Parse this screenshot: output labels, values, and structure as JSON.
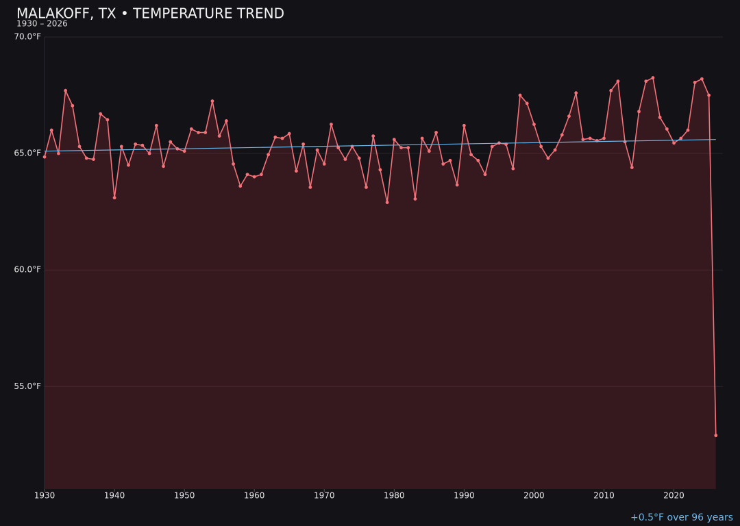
{
  "chart_data": {
    "type": "line",
    "title": "MALAKOFF, TX • TEMPERATURE TREND",
    "subtitle": "1930 – 2026",
    "annotation": "+0.5°F over 96 years",
    "x": [
      1930,
      1931,
      1932,
      1933,
      1934,
      1935,
      1936,
      1937,
      1938,
      1939,
      1940,
      1941,
      1942,
      1943,
      1944,
      1945,
      1946,
      1947,
      1948,
      1949,
      1950,
      1951,
      1952,
      1953,
      1954,
      1955,
      1956,
      1957,
      1958,
      1959,
      1960,
      1961,
      1962,
      1963,
      1964,
      1965,
      1966,
      1967,
      1968,
      1969,
      1970,
      1971,
      1972,
      1973,
      1974,
      1975,
      1976,
      1977,
      1978,
      1979,
      1980,
      1981,
      1982,
      1983,
      1984,
      1985,
      1986,
      1987,
      1988,
      1989,
      1990,
      1991,
      1992,
      1993,
      1994,
      1995,
      1996,
      1997,
      1998,
      1999,
      2000,
      2001,
      2002,
      2003,
      2004,
      2005,
      2006,
      2007,
      2008,
      2009,
      2010,
      2011,
      2012,
      2013,
      2014,
      2015,
      2016,
      2017,
      2018,
      2019,
      2020,
      2021,
      2022,
      2023,
      2024,
      2025,
      2026
    ],
    "series": [
      {
        "color": "#f4727a",
        "area_color": "rgba(180,50,60,0.22)",
        "values": [
          64.85,
          66.0,
          65.0,
          67.7,
          67.05,
          65.3,
          64.8,
          64.75,
          66.7,
          66.45,
          63.1,
          65.3,
          64.5,
          65.4,
          65.35,
          65.0,
          66.2,
          64.45,
          65.5,
          65.2,
          65.1,
          66.05,
          65.9,
          65.9,
          67.25,
          65.75,
          66.4,
          64.55,
          63.6,
          64.1,
          64.0,
          64.1,
          64.95,
          65.7,
          65.65,
          65.85,
          64.25,
          65.4,
          63.55,
          65.15,
          64.55,
          66.25,
          65.25,
          64.75,
          65.3,
          64.8,
          63.55,
          65.75,
          64.3,
          62.9,
          65.6,
          65.25,
          65.25,
          63.05,
          65.65,
          65.1,
          65.9,
          64.55,
          64.7,
          63.65,
          66.2,
          64.95,
          64.7,
          64.1,
          65.3,
          65.45,
          65.4,
          64.35,
          67.5,
          67.15,
          66.25,
          65.3,
          64.8,
          65.15,
          65.8,
          66.6,
          67.6,
          65.6,
          65.65,
          65.55,
          65.65,
          67.7,
          68.1,
          65.5,
          64.4,
          66.8,
          68.1,
          68.25,
          66.55,
          66.05,
          65.45,
          65.65,
          66.0,
          68.05,
          68.2,
          67.5,
          52.9
        ]
      }
    ],
    "trend": {
      "x": [
        1930,
        2026
      ],
      "values": [
        65.1,
        65.6
      ],
      "color": "#6cb8ea"
    },
    "xlim": [
      1930,
      2027
    ],
    "ylim": [
      50.6,
      70
    ],
    "xticks": [
      1930,
      1940,
      1950,
      1960,
      1970,
      1980,
      1990,
      2000,
      2010,
      2020
    ],
    "yticks": [
      {
        "value": 55,
        "label": "55.0°F"
      },
      {
        "value": 60,
        "label": "60.0°F"
      },
      {
        "value": 65,
        "label": "65.0°F"
      },
      {
        "value": 70,
        "label": "70.0°F"
      }
    ],
    "grid": true
  }
}
